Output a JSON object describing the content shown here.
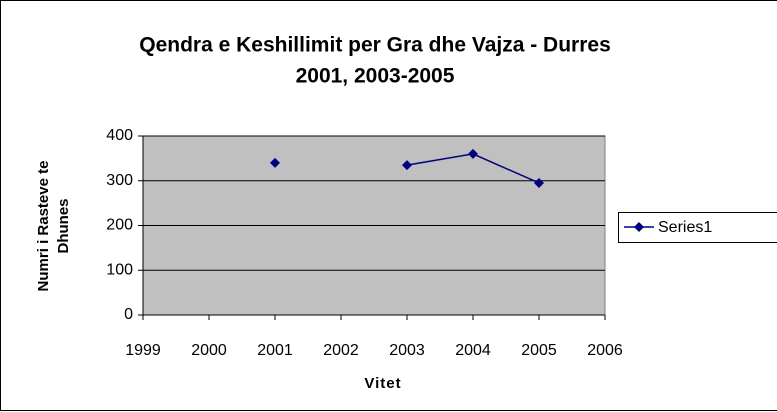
{
  "chart_data": {
    "type": "line",
    "title": "Qendra e Keshillimit per Gra dhe Vajza - Durres",
    "subtitle": "2001, 2003-2005",
    "xlabel": "Vitet",
    "ylabel": [
      "Numri i Rasteve te",
      "Dhunes"
    ],
    "x": [
      2001,
      2002,
      2003,
      2004,
      2005
    ],
    "series": [
      {
        "name": "Series1",
        "color": "#000080",
        "values": [
          340,
          null,
          335,
          360,
          295
        ]
      }
    ],
    "xlim": [
      1999,
      2006
    ],
    "xticks": [
      1999,
      2000,
      2001,
      2002,
      2003,
      2004,
      2005,
      2006
    ],
    "ylim": [
      0,
      400
    ],
    "yticks": [
      0,
      100,
      200,
      300,
      400
    ],
    "grid": true,
    "legend": "right",
    "plot_background": "#c0c0c0"
  }
}
